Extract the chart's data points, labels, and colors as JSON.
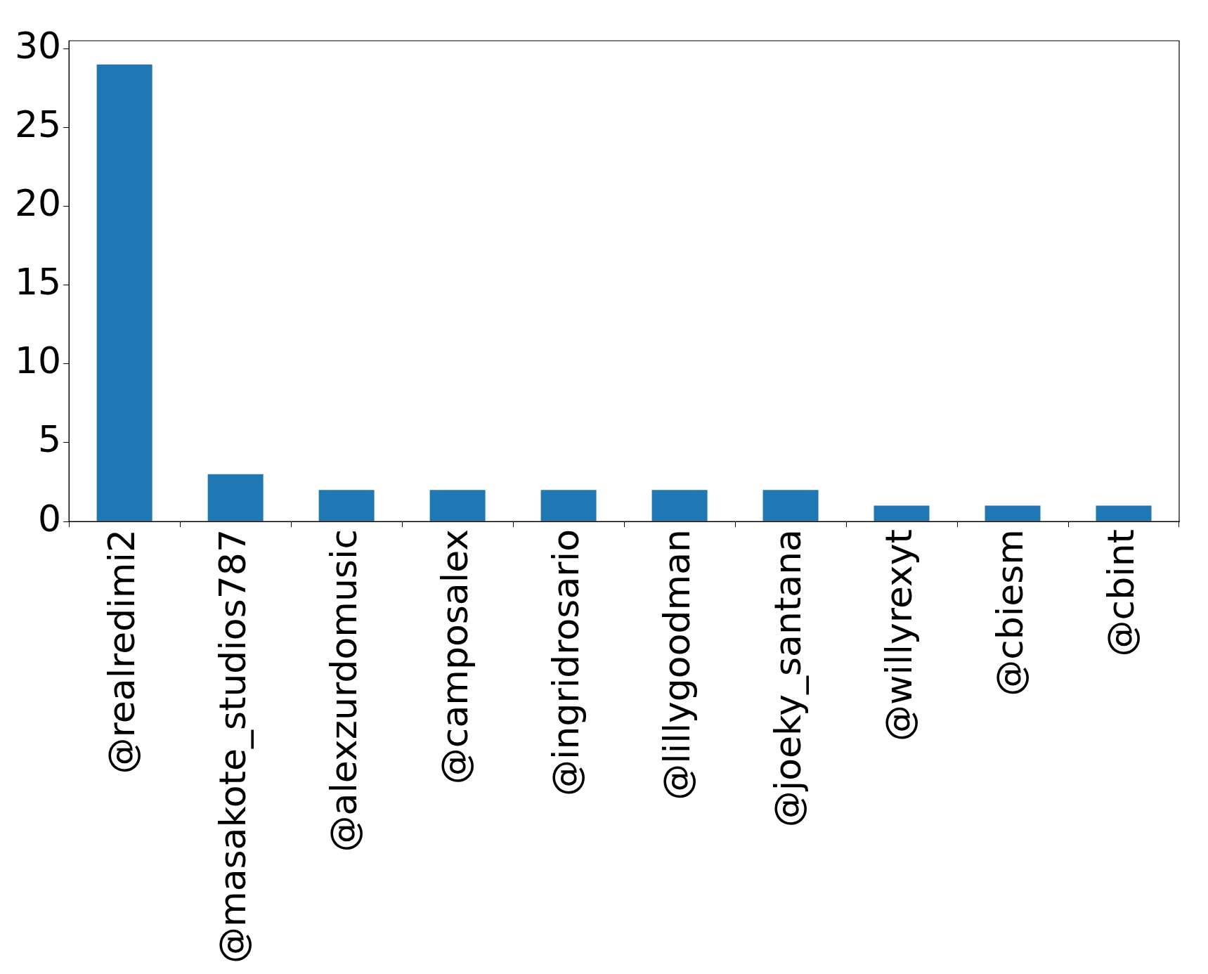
{
  "chart_data": {
    "type": "bar",
    "categories": [
      "@realredimi2",
      "@masakote_studios787",
      "@alexzurdomusic",
      "@camposalex",
      "@ingridrosario",
      "@lillygoodman",
      "@joeky_santana",
      "@willyrexyt",
      "@cbiesm",
      "@cbint"
    ],
    "values": [
      29,
      3,
      2,
      2,
      2,
      2,
      2,
      1,
      1,
      1
    ],
    "color": "#1f77b4",
    "ylim": [
      0,
      30.5
    ],
    "yticks": [
      0,
      5,
      10,
      15,
      20,
      25,
      30
    ],
    "grid": false,
    "legend": false
  }
}
